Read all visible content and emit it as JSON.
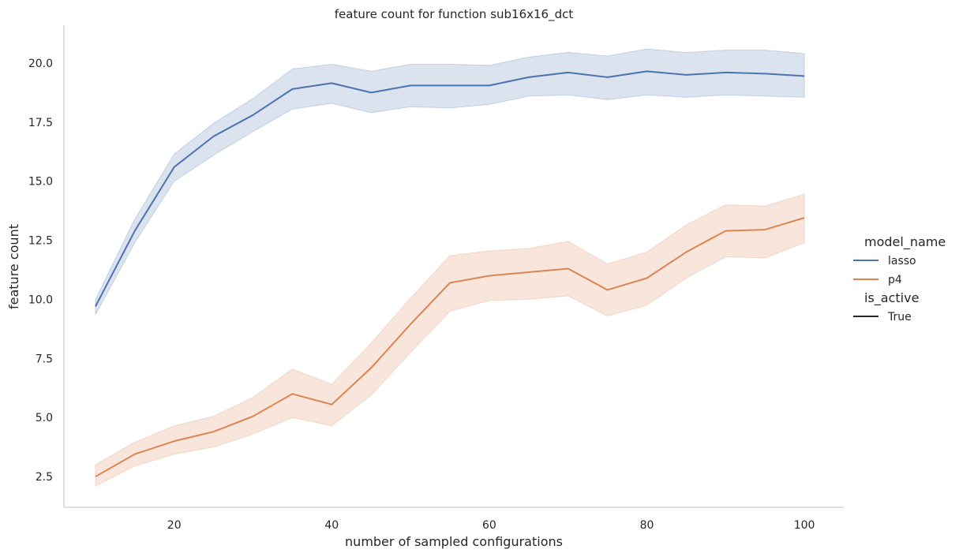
{
  "chart_data": {
    "type": "line",
    "title": "feature count for function sub16x16_dct",
    "xlabel": "number of sampled configurations",
    "ylabel": "feature count",
    "xlim": [
      6,
      105
    ],
    "ylim": [
      1.2,
      21.6
    ],
    "xticks": [
      20,
      40,
      60,
      80,
      100
    ],
    "xtick_labels": [
      "20",
      "40",
      "60",
      "80",
      "100"
    ],
    "yticks": [
      2.5,
      5.0,
      7.5,
      10.0,
      12.5,
      15.0,
      17.5,
      20.0
    ],
    "ytick_labels": [
      "2.5",
      "5.0",
      "7.5",
      "10.0",
      "12.5",
      "15.0",
      "17.5",
      "20.0"
    ],
    "grid": false,
    "legend": {
      "placement": "right",
      "hue_title": "model_name",
      "style_title": "is_active",
      "style_entries": [
        "True"
      ]
    },
    "x": [
      10,
      15,
      20,
      25,
      30,
      35,
      40,
      45,
      50,
      55,
      60,
      65,
      70,
      75,
      80,
      85,
      90,
      95,
      100
    ],
    "series": [
      {
        "name": "lasso",
        "color": "#4c72b0",
        "values": [
          9.7,
          12.9,
          15.6,
          16.9,
          17.8,
          18.9,
          19.15,
          18.75,
          19.05,
          19.05,
          19.05,
          19.4,
          19.6,
          19.4,
          19.65,
          19.5,
          19.6,
          19.55,
          19.45
        ],
        "ci_lower": [
          9.35,
          12.4,
          15.0,
          16.1,
          17.1,
          18.05,
          18.3,
          17.9,
          18.15,
          18.1,
          18.25,
          18.6,
          18.65,
          18.45,
          18.65,
          18.55,
          18.65,
          18.6,
          18.55
        ],
        "ci_upper": [
          10.0,
          13.4,
          16.15,
          17.45,
          18.5,
          19.75,
          19.95,
          19.65,
          19.95,
          19.95,
          19.9,
          20.25,
          20.45,
          20.3,
          20.6,
          20.45,
          20.55,
          20.55,
          20.4
        ]
      },
      {
        "name": "p4",
        "color": "#dd8452",
        "values": [
          2.5,
          3.45,
          4.0,
          4.4,
          5.05,
          6.0,
          5.55,
          7.1,
          8.95,
          10.7,
          11.0,
          11.15,
          11.3,
          10.4,
          10.9,
          12.0,
          12.9,
          12.95,
          13.45
        ],
        "ci_lower": [
          2.1,
          2.95,
          3.45,
          3.75,
          4.3,
          5.0,
          4.65,
          5.95,
          7.75,
          9.5,
          9.95,
          10.0,
          10.15,
          9.3,
          9.75,
          10.9,
          11.8,
          11.75,
          12.4
        ],
        "ci_upper": [
          3.0,
          3.95,
          4.65,
          5.05,
          5.85,
          7.05,
          6.4,
          8.15,
          10.05,
          11.85,
          12.05,
          12.15,
          12.45,
          11.5,
          12.0,
          13.15,
          14.0,
          13.95,
          14.45
        ]
      }
    ]
  }
}
